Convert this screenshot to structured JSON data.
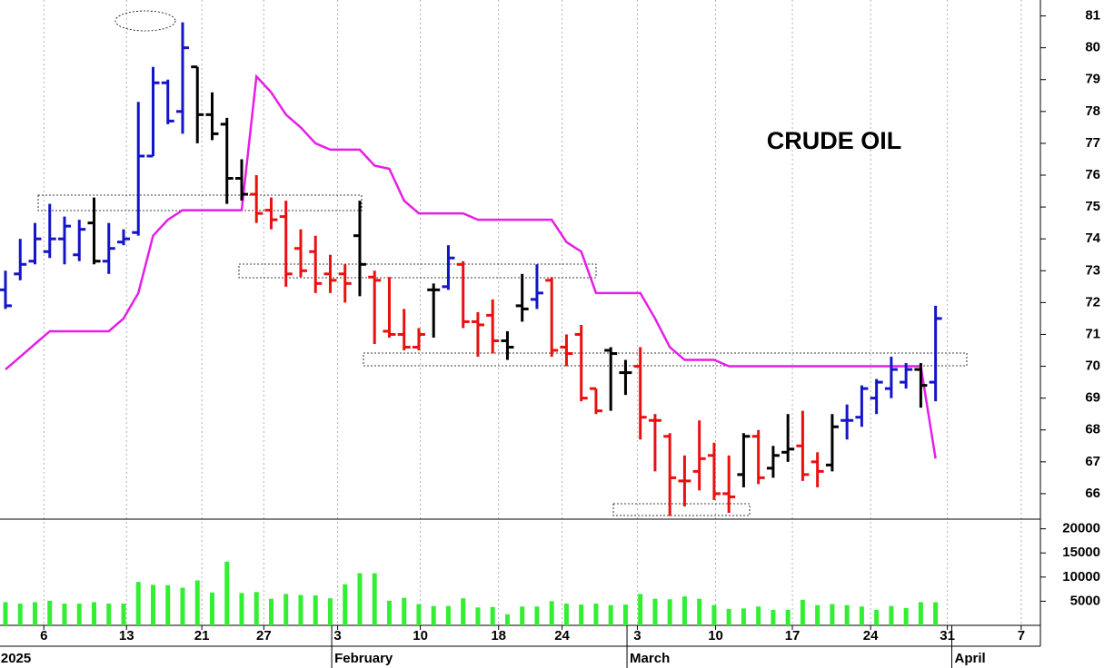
{
  "chart_data": {
    "type": "ohlc",
    "title": "CRUDE OIL",
    "x": [
      0,
      1,
      2,
      3,
      4,
      5,
      6,
      7,
      8,
      9,
      10,
      11,
      12,
      13,
      14,
      15,
      16,
      17,
      18,
      19,
      20,
      21,
      22,
      23,
      24,
      25,
      26,
      27,
      28,
      29,
      30,
      31,
      32,
      33,
      34,
      35,
      36,
      37,
      38,
      39,
      40,
      41,
      42,
      43,
      44,
      45,
      46,
      47,
      48,
      49,
      50,
      51,
      52,
      53,
      54,
      55,
      56,
      57,
      58,
      59,
      60,
      61,
      62,
      63
    ],
    "open": [
      72.4,
      72.9,
      73.3,
      73.6,
      74.0,
      73.5,
      74.5,
      73.3,
      73.9,
      74.2,
      76.6,
      78.9,
      78.0,
      79.4,
      77.9,
      77.6,
      75.9,
      75.4,
      74.9,
      74.7,
      73.7,
      73.6,
      72.9,
      72.9,
      74.1,
      72.8,
      71.1,
      71.0,
      70.6,
      72.4,
      72.5,
      73.2,
      71.4,
      71.6,
      70.8,
      71.9,
      72.1,
      72.7,
      70.6,
      71.0,
      69.3,
      70.5,
      69.8,
      70.0,
      68.3,
      67.8,
      66.4,
      66.7,
      67.2,
      66.0,
      66.6,
      67.8,
      66.8,
      67.3,
      67.5,
      67.0,
      66.9,
      68.3,
      68.4,
      69.0,
      69.3,
      69.5,
      69.9,
      69.5
    ],
    "high": [
      73.0,
      74.0,
      74.5,
      75.1,
      74.7,
      74.6,
      75.3,
      74.5,
      74.3,
      78.3,
      79.4,
      79.0,
      80.8,
      79.4,
      78.6,
      77.8,
      76.5,
      76.0,
      75.3,
      75.2,
      74.3,
      74.1,
      73.5,
      73.2,
      75.2,
      73.0,
      72.8,
      71.8,
      71.2,
      72.6,
      73.8,
      73.3,
      71.7,
      72.1,
      71.1,
      72.9,
      73.2,
      72.8,
      71.0,
      71.3,
      69.3,
      70.6,
      70.2,
      70.6,
      68.5,
      67.9,
      67.2,
      68.3,
      67.6,
      67.2,
      67.9,
      68.0,
      67.5,
      68.5,
      68.6,
      67.3,
      68.5,
      68.8,
      69.4,
      69.6,
      70.3,
      70.1,
      70.1,
      71.9
    ],
    "low": [
      71.8,
      72.7,
      73.2,
      73.4,
      73.2,
      73.3,
      73.2,
      72.9,
      73.8,
      74.1,
      76.6,
      77.6,
      77.3,
      77.0,
      77.1,
      75.1,
      75.2,
      74.5,
      74.3,
      72.5,
      72.8,
      72.3,
      72.3,
      72.0,
      72.2,
      70.7,
      70.9,
      70.5,
      70.5,
      70.9,
      72.4,
      71.2,
      70.3,
      70.4,
      70.2,
      71.4,
      71.8,
      70.3,
      70.0,
      68.9,
      68.5,
      68.6,
      69.1,
      67.7,
      66.7,
      65.3,
      65.6,
      66.1,
      65.8,
      65.4,
      66.2,
      66.3,
      66.5,
      67.0,
      66.4,
      66.2,
      66.7,
      67.7,
      68.1,
      68.5,
      69.0,
      69.3,
      68.7,
      68.9
    ],
    "close": [
      71.9,
      73.2,
      74.0,
      74.0,
      74.4,
      74.3,
      73.3,
      73.7,
      74.0,
      76.6,
      78.9,
      77.7,
      80.0,
      77.9,
      77.3,
      75.9,
      75.4,
      74.8,
      74.6,
      72.9,
      73.0,
      72.6,
      72.7,
      72.6,
      73.2,
      72.7,
      71.0,
      70.6,
      71.0,
      72.4,
      73.4,
      71.4,
      71.3,
      70.8,
      70.6,
      71.8,
      72.3,
      70.5,
      70.4,
      69.0,
      68.6,
      70.4,
      69.8,
      68.4,
      68.3,
      66.5,
      66.4,
      67.1,
      66.0,
      65.9,
      67.8,
      66.5,
      67.2,
      67.4,
      66.6,
      66.7,
      68.1,
      68.3,
      69.3,
      69.5,
      69.9,
      69.9,
      69.4,
      71.5
    ],
    "colors": [
      "#1414c8",
      "#1414c8",
      "#1414c8",
      "#1414c8",
      "#1414c8",
      "#1414c8",
      "#000000",
      "#1414c8",
      "#1414c8",
      "#1414c8",
      "#1414c8",
      "#1414c8",
      "#1414c8",
      "#000000",
      "#000000",
      "#000000",
      "#000000",
      "#e81010",
      "#e81010",
      "#e81010",
      "#e81010",
      "#e81010",
      "#e81010",
      "#e81010",
      "#000000",
      "#e81010",
      "#e81010",
      "#e81010",
      "#e81010",
      "#000000",
      "#1414c8",
      "#e81010",
      "#e81010",
      "#e81010",
      "#000000",
      "#000000",
      "#1414c8",
      "#e81010",
      "#e81010",
      "#e81010",
      "#e81010",
      "#000000",
      "#000000",
      "#e81010",
      "#e81010",
      "#e81010",
      "#e81010",
      "#e81010",
      "#e81010",
      "#e81010",
      "#000000",
      "#e81010",
      "#000000",
      "#000000",
      "#e81010",
      "#e81010",
      "#000000",
      "#1414c8",
      "#1414c8",
      "#1414c8",
      "#1414c8",
      "#1414c8",
      "#000000",
      "#1414c8"
    ],
    "overlay": {
      "color": "#e61ee6",
      "values": [
        69.9,
        70.3,
        70.7,
        71.1,
        71.1,
        71.1,
        71.1,
        71.1,
        71.5,
        72.3,
        74.1,
        74.6,
        74.9,
        74.9,
        74.9,
        74.9,
        74.9,
        79.1,
        78.6,
        77.9,
        77.5,
        77.0,
        76.8,
        76.8,
        76.8,
        76.3,
        76.2,
        75.2,
        74.8,
        74.8,
        74.8,
        74.8,
        74.6,
        74.6,
        74.6,
        74.6,
        74.6,
        74.6,
        73.9,
        73.6,
        72.3,
        72.3,
        72.3,
        72.3,
        71.5,
        70.6,
        70.2,
        70.2,
        70.2,
        70.0,
        70.0,
        70.0,
        70.0,
        70.0,
        70.0,
        70.0,
        70.0,
        70.0,
        70.0,
        70.0,
        70.0,
        70.0,
        70.0,
        67.1
      ]
    },
    "volume": {
      "color": "#33ee33",
      "ylim": [
        0,
        22000
      ],
      "yticks": [
        5000,
        10000,
        15000,
        20000
      ],
      "values": [
        4800,
        4500,
        4800,
        5100,
        4500,
        4500,
        4800,
        4500,
        4500,
        9000,
        8400,
        8300,
        7800,
        9300,
        6800,
        13200,
        6700,
        6900,
        5500,
        6500,
        6300,
        6200,
        5600,
        8500,
        10800,
        10800,
        5100,
        5700,
        4400,
        4000,
        4000,
        5600,
        3700,
        3800,
        2300,
        3900,
        3900,
        5000,
        4500,
        4300,
        4500,
        4200,
        4300,
        6500,
        5500,
        5400,
        6000,
        5500,
        4200,
        3400,
        3500,
        3900,
        3200,
        3200,
        5300,
        4200,
        4400,
        4200,
        3900,
        3200,
        4000,
        3600,
        4800,
        4800
      ]
    },
    "xlim": [
      -0.37,
      70.1
    ],
    "xticks": [
      {
        "value": 2.6,
        "label": "6"
      },
      {
        "value": 8.2,
        "label": "13"
      },
      {
        "value": 13.3,
        "label": "21"
      },
      {
        "value": 17.5,
        "label": "27"
      },
      {
        "value": 22.5,
        "label": "3"
      },
      {
        "value": 28.1,
        "label": "10"
      },
      {
        "value": 33.4,
        "label": "18"
      },
      {
        "value": 37.7,
        "label": "24"
      },
      {
        "value": 42.8,
        "label": "3"
      },
      {
        "value": 48.1,
        "label": "10"
      },
      {
        "value": 53.3,
        "label": "17"
      },
      {
        "value": 58.6,
        "label": "24"
      },
      {
        "value": 63.8,
        "label": "31"
      },
      {
        "value": 68.8,
        "label": "7"
      }
    ],
    "month_ticks": [
      {
        "value": -0.5,
        "label": "2025"
      },
      {
        "value": 22.1,
        "label": "February"
      },
      {
        "value": 42.1,
        "label": "March"
      },
      {
        "value": 64.1,
        "label": "April"
      }
    ],
    "ylim": [
      65.2,
      81.5
    ],
    "yticks": [
      66,
      67,
      68,
      69,
      70,
      71,
      72,
      73,
      74,
      75,
      76,
      77,
      78,
      79,
      80,
      81
    ],
    "grid": true
  }
}
